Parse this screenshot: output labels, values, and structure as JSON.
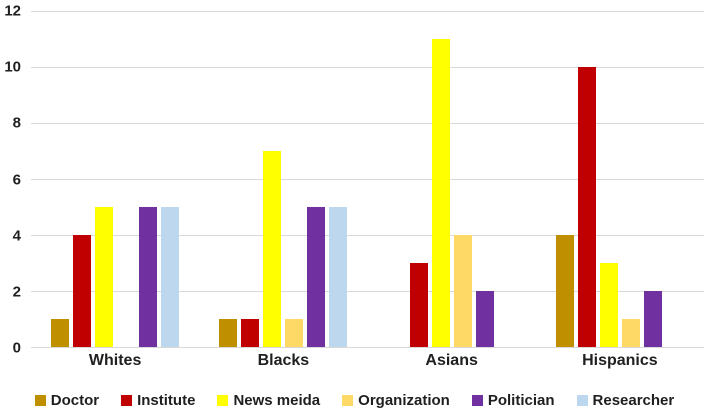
{
  "chart_data": {
    "type": "bar",
    "title": "",
    "xlabel": "",
    "ylabel": "",
    "categories": [
      "Whites",
      "Blacks",
      "Asians",
      "Hispanics"
    ],
    "series": [
      {
        "name": "Doctor",
        "color": "#BF8F00",
        "values": [
          1,
          1,
          0,
          4
        ]
      },
      {
        "name": "Institute",
        "color": "#C00000",
        "values": [
          4,
          1,
          3,
          10
        ]
      },
      {
        "name": "News meida",
        "color": "#FFFF00",
        "values": [
          5,
          7,
          11,
          3
        ]
      },
      {
        "name": "Organization",
        "color": "#FFD966",
        "values": [
          0,
          1,
          4,
          1
        ]
      },
      {
        "name": "Politician",
        "color": "#7030A0",
        "values": [
          5,
          5,
          2,
          2
        ]
      },
      {
        "name": "Researcher",
        "color": "#BDD7EE",
        "values": [
          5,
          5,
          0,
          0
        ]
      }
    ],
    "ylim": [
      0,
      12
    ],
    "yticks": [
      0,
      2,
      4,
      6,
      8,
      10,
      12
    ],
    "grid": true,
    "legend_position": "bottom"
  },
  "colors": {
    "background": "#FFFFFF",
    "gridline": "#D9D9D9",
    "axis_text": "#1F1F1F"
  }
}
